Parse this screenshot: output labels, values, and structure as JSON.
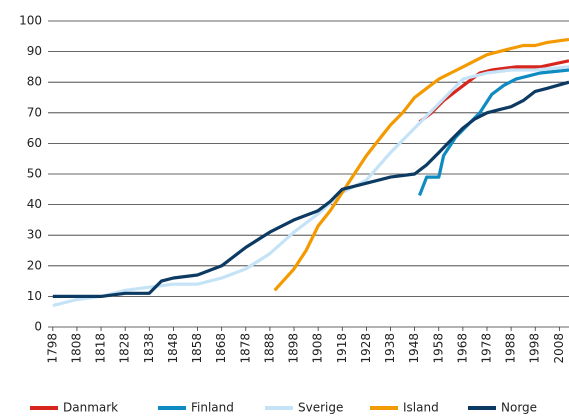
{
  "chart_data": {
    "type": "line",
    "ylim": [
      0,
      100
    ],
    "yticks": [
      0,
      10,
      20,
      30,
      40,
      50,
      60,
      70,
      80,
      90,
      100
    ],
    "xlim": [
      1796,
      2012
    ],
    "xticks": [
      1798,
      1808,
      1818,
      1828,
      1838,
      1848,
      1858,
      1868,
      1878,
      1888,
      1898,
      1908,
      1918,
      1928,
      1938,
      1948,
      1958,
      1968,
      1978,
      1988,
      1998,
      2008
    ],
    "grid": true,
    "legend": "bottom",
    "series": [
      {
        "name": "Danmark",
        "color": "#d7261e",
        "x": [
          1950,
          1955,
          1960,
          1965,
          1970,
          1975,
          1980,
          1990,
          2000,
          2012
        ],
        "values": [
          67,
          70,
          74,
          77,
          80,
          83,
          84,
          85,
          85,
          87
        ]
      },
      {
        "name": "Finland",
        "color": "#0e8bc0",
        "x": [
          1950,
          1953,
          1958,
          1960,
          1965,
          1970,
          1975,
          1980,
          1985,
          1990,
          1995,
          2000,
          2012
        ],
        "values": [
          43,
          49,
          49,
          56,
          62,
          66,
          70,
          76,
          79,
          81,
          82,
          83,
          84
        ]
      },
      {
        "name": "Sverige",
        "color": "#c5e3f6",
        "x": [
          1798,
          1808,
          1818,
          1828,
          1838,
          1848,
          1858,
          1868,
          1878,
          1888,
          1898,
          1908,
          1918,
          1928,
          1938,
          1948,
          1958,
          1968,
          1978,
          1988,
          1998,
          2012
        ],
        "values": [
          7,
          9,
          10,
          12,
          13,
          14,
          14,
          16,
          19,
          24,
          31,
          37,
          44,
          48,
          57,
          65,
          73,
          81,
          83,
          84,
          84,
          85
        ]
      },
      {
        "name": "Island",
        "color": "#f39a00",
        "x": [
          1890,
          1898,
          1903,
          1908,
          1913,
          1918,
          1923,
          1928,
          1933,
          1938,
          1943,
          1948,
          1953,
          1958,
          1963,
          1968,
          1973,
          1978,
          1983,
          1988,
          1993,
          1998,
          2003,
          2012
        ],
        "values": [
          12,
          19,
          25,
          33,
          38,
          44,
          50,
          56,
          61,
          66,
          70,
          75,
          78,
          81,
          83,
          85,
          87,
          89,
          90,
          91,
          92,
          92,
          93,
          94
        ]
      },
      {
        "name": "Norge",
        "color": "#0c3a63",
        "x": [
          1798,
          1808,
          1818,
          1828,
          1838,
          1843,
          1848,
          1858,
          1868,
          1873,
          1878,
          1888,
          1898,
          1908,
          1913,
          1918,
          1928,
          1938,
          1948,
          1953,
          1958,
          1963,
          1968,
          1973,
          1978,
          1983,
          1988,
          1993,
          1998,
          2003,
          2012
        ],
        "values": [
          10,
          10,
          10,
          11,
          11,
          15,
          16,
          17,
          20,
          23,
          26,
          31,
          35,
          38,
          41,
          45,
          47,
          49,
          50,
          53,
          57,
          61,
          65,
          68,
          70,
          71,
          72,
          74,
          77,
          78,
          80
        ]
      }
    ]
  }
}
